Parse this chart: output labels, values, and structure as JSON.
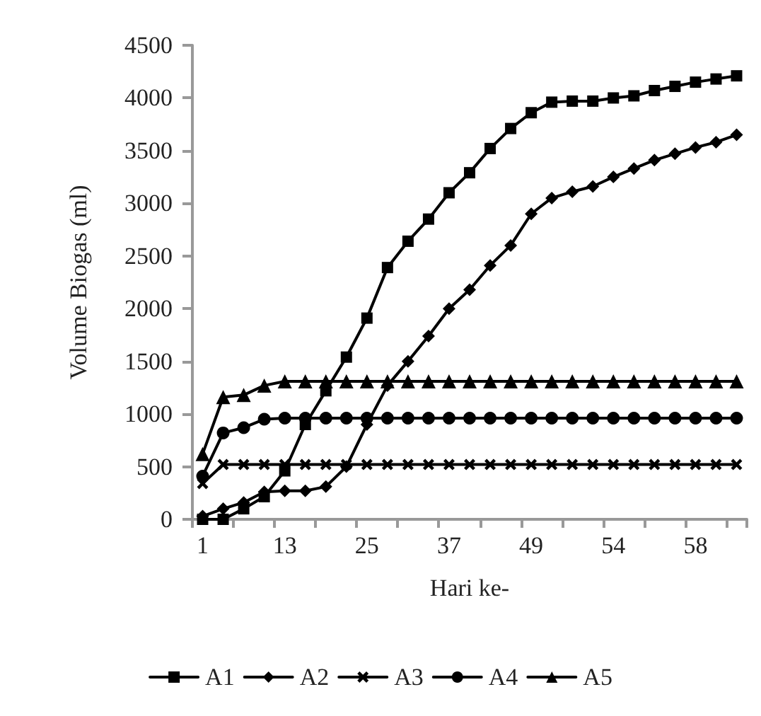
{
  "chart_data": {
    "type": "line",
    "xlabel": "Hari ke-",
    "ylabel": "Volume Biogas (ml)",
    "categories": [
      "1",
      null,
      null,
      null,
      "13",
      null,
      null,
      null,
      "25",
      null,
      null,
      null,
      "37",
      null,
      null,
      null,
      "49",
      null,
      null,
      null,
      "54",
      null,
      null,
      null,
      "58",
      null,
      null
    ],
    "series": [
      {
        "name": "A1",
        "color": "#000000",
        "marker": "square",
        "values": [
          0,
          0,
          100,
          215,
          460,
          900,
          1220,
          1540,
          1910,
          2390,
          2640,
          2850,
          3100,
          3290,
          3520,
          3710,
          3860,
          3960,
          3970,
          3970,
          4000,
          4020,
          4070,
          4110,
          4150,
          4180,
          4210
        ]
      },
      {
        "name": "A2",
        "color": "#000000",
        "marker": "diamond",
        "values": [
          30,
          100,
          160,
          260,
          270,
          270,
          310,
          500,
          900,
          1270,
          1500,
          1740,
          2000,
          2180,
          2410,
          2600,
          2900,
          3050,
          3110,
          3160,
          3250,
          3330,
          3410,
          3470,
          3530,
          3580,
          3650
        ]
      },
      {
        "name": "A3",
        "color": "#000000",
        "marker": "cross",
        "values": [
          340,
          520,
          520,
          520,
          520,
          520,
          520,
          520,
          520,
          520,
          520,
          520,
          520,
          520,
          520,
          520,
          520,
          520,
          520,
          520,
          520,
          520,
          520,
          520,
          520,
          520,
          520
        ]
      },
      {
        "name": "A4",
        "color": "#000000",
        "marker": "circle",
        "values": [
          410,
          820,
          870,
          950,
          960,
          960,
          960,
          960,
          960,
          960,
          960,
          960,
          960,
          960,
          960,
          960,
          960,
          960,
          960,
          960,
          960,
          960,
          960,
          960,
          960,
          960,
          960
        ]
      },
      {
        "name": "A5",
        "color": "#000000",
        "marker": "triangle",
        "values": [
          620,
          1160,
          1180,
          1270,
          1310,
          1310,
          1310,
          1310,
          1310,
          1310,
          1310,
          1310,
          1310,
          1310,
          1310,
          1310,
          1310,
          1310,
          1310,
          1310,
          1310,
          1310,
          1310,
          1310,
          1310,
          1310,
          1310
        ]
      }
    ],
    "ylim": [
      0,
      4500
    ],
    "yticks": [
      0,
      500,
      1000,
      1500,
      2000,
      2500,
      3000,
      3500,
      4000,
      4500
    ],
    "grid": false,
    "legend": "bottom"
  }
}
